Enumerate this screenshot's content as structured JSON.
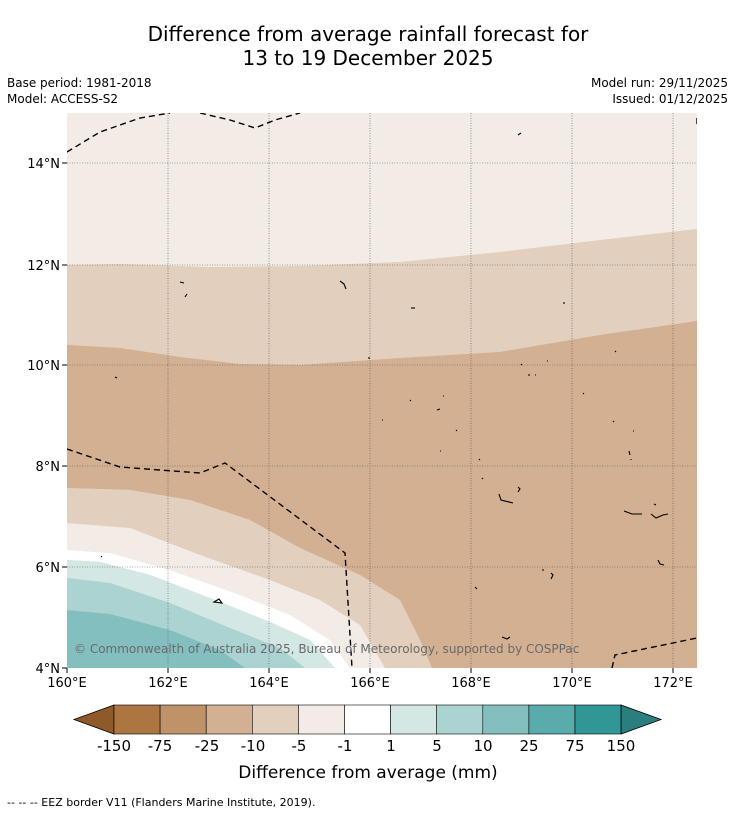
{
  "title": {
    "line1": "Difference from average rainfall forecast for",
    "line2": "13 to 19 December 2025"
  },
  "meta": {
    "base_period": "Base period: 1981-2018",
    "model": "Model: ACCESS-S2",
    "model_run": "Model run: 29/11/2025",
    "issued": "Issued: 01/12/2025"
  },
  "axes": {
    "x_ticks": [
      "160°E",
      "162°E",
      "164°E",
      "166°E",
      "168°E",
      "170°E",
      "172°E"
    ],
    "y_ticks": [
      "14°N",
      "12°N",
      "10°N",
      "8°N",
      "6°N",
      "4°N"
    ]
  },
  "copyright": "© Commonwealth of Australia 2025, Bureau of Meteorology, supported by COSPPac",
  "colorbar": {
    "labels": [
      "-150",
      "-75",
      "-25",
      "-10",
      "-5",
      "-1",
      "1",
      "5",
      "10",
      "25",
      "75",
      "150"
    ],
    "title": "Difference from average (mm)",
    "colors": [
      "#8f5a2a",
      "#ad7542",
      "#bf9267",
      "#d2b091",
      "#e2cfbd",
      "#f3ece6",
      "#ffffff",
      "#d3e7e5",
      "#aad3d2",
      "#84bfbf",
      "#5aabab",
      "#319696",
      "#2b7e7e"
    ]
  },
  "footnote": "-- -- -- EEZ border V11 (Flanders Marine Institute, 2019)."
}
